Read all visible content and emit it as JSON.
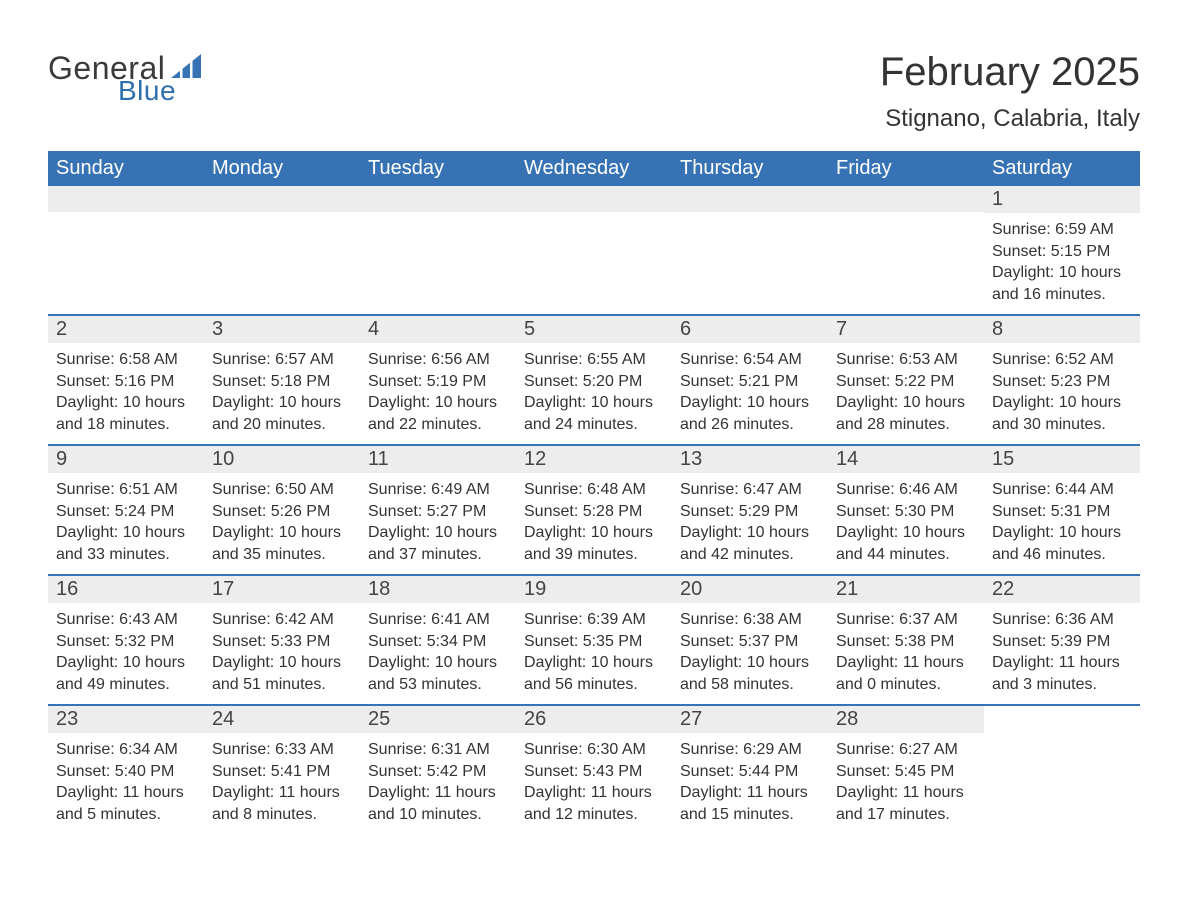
{
  "brand": {
    "word1": "General",
    "word2": "Blue",
    "accent_color": "#2f6fae",
    "sail_color": "#3773b4"
  },
  "header": {
    "title": "February 2025",
    "location": "Stignano, Calabria, Italy"
  },
  "calendar": {
    "type": "table",
    "header_bg": "#3773b4",
    "header_fg": "#ffffff",
    "row_sep_color": "#3773b4",
    "daynum_bg": "#ededed",
    "text_color": "#333333",
    "columns": [
      "Sunday",
      "Monday",
      "Tuesday",
      "Wednesday",
      "Thursday",
      "Friday",
      "Saturday"
    ],
    "weeks": [
      [
        null,
        null,
        null,
        null,
        null,
        null,
        {
          "n": "1",
          "sr": "Sunrise: 6:59 AM",
          "ss": "Sunset: 5:15 PM",
          "dl1": "Daylight: 10 hours",
          "dl2": "and 16 minutes."
        }
      ],
      [
        {
          "n": "2",
          "sr": "Sunrise: 6:58 AM",
          "ss": "Sunset: 5:16 PM",
          "dl1": "Daylight: 10 hours",
          "dl2": "and 18 minutes."
        },
        {
          "n": "3",
          "sr": "Sunrise: 6:57 AM",
          "ss": "Sunset: 5:18 PM",
          "dl1": "Daylight: 10 hours",
          "dl2": "and 20 minutes."
        },
        {
          "n": "4",
          "sr": "Sunrise: 6:56 AM",
          "ss": "Sunset: 5:19 PM",
          "dl1": "Daylight: 10 hours",
          "dl2": "and 22 minutes."
        },
        {
          "n": "5",
          "sr": "Sunrise: 6:55 AM",
          "ss": "Sunset: 5:20 PM",
          "dl1": "Daylight: 10 hours",
          "dl2": "and 24 minutes."
        },
        {
          "n": "6",
          "sr": "Sunrise: 6:54 AM",
          "ss": "Sunset: 5:21 PM",
          "dl1": "Daylight: 10 hours",
          "dl2": "and 26 minutes."
        },
        {
          "n": "7",
          "sr": "Sunrise: 6:53 AM",
          "ss": "Sunset: 5:22 PM",
          "dl1": "Daylight: 10 hours",
          "dl2": "and 28 minutes."
        },
        {
          "n": "8",
          "sr": "Sunrise: 6:52 AM",
          "ss": "Sunset: 5:23 PM",
          "dl1": "Daylight: 10 hours",
          "dl2": "and 30 minutes."
        }
      ],
      [
        {
          "n": "9",
          "sr": "Sunrise: 6:51 AM",
          "ss": "Sunset: 5:24 PM",
          "dl1": "Daylight: 10 hours",
          "dl2": "and 33 minutes."
        },
        {
          "n": "10",
          "sr": "Sunrise: 6:50 AM",
          "ss": "Sunset: 5:26 PM",
          "dl1": "Daylight: 10 hours",
          "dl2": "and 35 minutes."
        },
        {
          "n": "11",
          "sr": "Sunrise: 6:49 AM",
          "ss": "Sunset: 5:27 PM",
          "dl1": "Daylight: 10 hours",
          "dl2": "and 37 minutes."
        },
        {
          "n": "12",
          "sr": "Sunrise: 6:48 AM",
          "ss": "Sunset: 5:28 PM",
          "dl1": "Daylight: 10 hours",
          "dl2": "and 39 minutes."
        },
        {
          "n": "13",
          "sr": "Sunrise: 6:47 AM",
          "ss": "Sunset: 5:29 PM",
          "dl1": "Daylight: 10 hours",
          "dl2": "and 42 minutes."
        },
        {
          "n": "14",
          "sr": "Sunrise: 6:46 AM",
          "ss": "Sunset: 5:30 PM",
          "dl1": "Daylight: 10 hours",
          "dl2": "and 44 minutes."
        },
        {
          "n": "15",
          "sr": "Sunrise: 6:44 AM",
          "ss": "Sunset: 5:31 PM",
          "dl1": "Daylight: 10 hours",
          "dl2": "and 46 minutes."
        }
      ],
      [
        {
          "n": "16",
          "sr": "Sunrise: 6:43 AM",
          "ss": "Sunset: 5:32 PM",
          "dl1": "Daylight: 10 hours",
          "dl2": "and 49 minutes."
        },
        {
          "n": "17",
          "sr": "Sunrise: 6:42 AM",
          "ss": "Sunset: 5:33 PM",
          "dl1": "Daylight: 10 hours",
          "dl2": "and 51 minutes."
        },
        {
          "n": "18",
          "sr": "Sunrise: 6:41 AM",
          "ss": "Sunset: 5:34 PM",
          "dl1": "Daylight: 10 hours",
          "dl2": "and 53 minutes."
        },
        {
          "n": "19",
          "sr": "Sunrise: 6:39 AM",
          "ss": "Sunset: 5:35 PM",
          "dl1": "Daylight: 10 hours",
          "dl2": "and 56 minutes."
        },
        {
          "n": "20",
          "sr": "Sunrise: 6:38 AM",
          "ss": "Sunset: 5:37 PM",
          "dl1": "Daylight: 10 hours",
          "dl2": "and 58 minutes."
        },
        {
          "n": "21",
          "sr": "Sunrise: 6:37 AM",
          "ss": "Sunset: 5:38 PM",
          "dl1": "Daylight: 11 hours",
          "dl2": "and 0 minutes."
        },
        {
          "n": "22",
          "sr": "Sunrise: 6:36 AM",
          "ss": "Sunset: 5:39 PM",
          "dl1": "Daylight: 11 hours",
          "dl2": "and 3 minutes."
        }
      ],
      [
        {
          "n": "23",
          "sr": "Sunrise: 6:34 AM",
          "ss": "Sunset: 5:40 PM",
          "dl1": "Daylight: 11 hours",
          "dl2": "and 5 minutes."
        },
        {
          "n": "24",
          "sr": "Sunrise: 6:33 AM",
          "ss": "Sunset: 5:41 PM",
          "dl1": "Daylight: 11 hours",
          "dl2": "and 8 minutes."
        },
        {
          "n": "25",
          "sr": "Sunrise: 6:31 AM",
          "ss": "Sunset: 5:42 PM",
          "dl1": "Daylight: 11 hours",
          "dl2": "and 10 minutes."
        },
        {
          "n": "26",
          "sr": "Sunrise: 6:30 AM",
          "ss": "Sunset: 5:43 PM",
          "dl1": "Daylight: 11 hours",
          "dl2": "and 12 minutes."
        },
        {
          "n": "27",
          "sr": "Sunrise: 6:29 AM",
          "ss": "Sunset: 5:44 PM",
          "dl1": "Daylight: 11 hours",
          "dl2": "and 15 minutes."
        },
        {
          "n": "28",
          "sr": "Sunrise: 6:27 AM",
          "ss": "Sunset: 5:45 PM",
          "dl1": "Daylight: 11 hours",
          "dl2": "and 17 minutes."
        },
        null
      ]
    ]
  }
}
